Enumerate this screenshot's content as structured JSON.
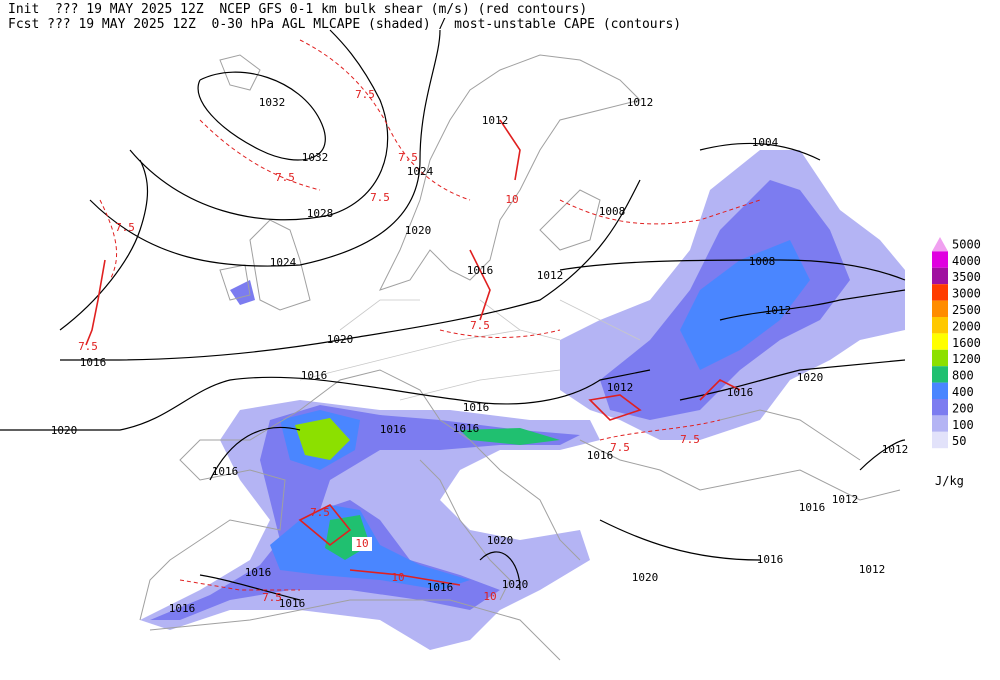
{
  "header": {
    "line1": "Init  ??? 19 MAY 2025 12Z  NCEP GFS 0-1 km bulk shear (m/s) (red contours)",
    "line2": "Fcst ??? 19 MAY 2025 12Z  0-30 hPa AGL MLCAPE (shaded) / most-unstable CAPE (contours)"
  },
  "isobar_labels": [
    "1032",
    "1032",
    "1024",
    "1028",
    "1020",
    "1024",
    "1012",
    "1012",
    "1004",
    "1008",
    "1016",
    "1012",
    "1008",
    "1012",
    "1020",
    "1016",
    "1016",
    "1012",
    "1016",
    "1020",
    "1020",
    "1016",
    "1016",
    "1016",
    "1016",
    "1016",
    "1012",
    "1012",
    "1016",
    "1020",
    "1016",
    "1020",
    "1012",
    "1016",
    "1016",
    "1020",
    "1016",
    "1016"
  ],
  "shear_labels": [
    "7.5",
    "7.5",
    "7.5",
    "7.5",
    "7.5",
    "7.5",
    "7.5",
    "7.5",
    "7.5",
    "7.5",
    "7.5",
    "10",
    "10",
    "10",
    "10"
  ],
  "legend": {
    "levels": [
      {
        "label": "5000",
        "color": "#f0a0f0"
      },
      {
        "label": "4000",
        "color": "#e000e0"
      },
      {
        "label": "3500",
        "color": "#a010a0"
      },
      {
        "label": "3000",
        "color": "#ff3c00"
      },
      {
        "label": "2500",
        "color": "#ff8c00"
      },
      {
        "label": "2000",
        "color": "#ffc800"
      },
      {
        "label": "1600",
        "color": "#ffff00"
      },
      {
        "label": "1200",
        "color": "#8ce000"
      },
      {
        "label": "800",
        "color": "#20c070"
      },
      {
        "label": "400",
        "color": "#4a86ff"
      },
      {
        "label": "200",
        "color": "#7c7cf0"
      },
      {
        "label": "100",
        "color": "#b4b4f4"
      },
      {
        "label": "50",
        "color": "#e2e2fa"
      }
    ],
    "unit": "J/kg"
  }
}
